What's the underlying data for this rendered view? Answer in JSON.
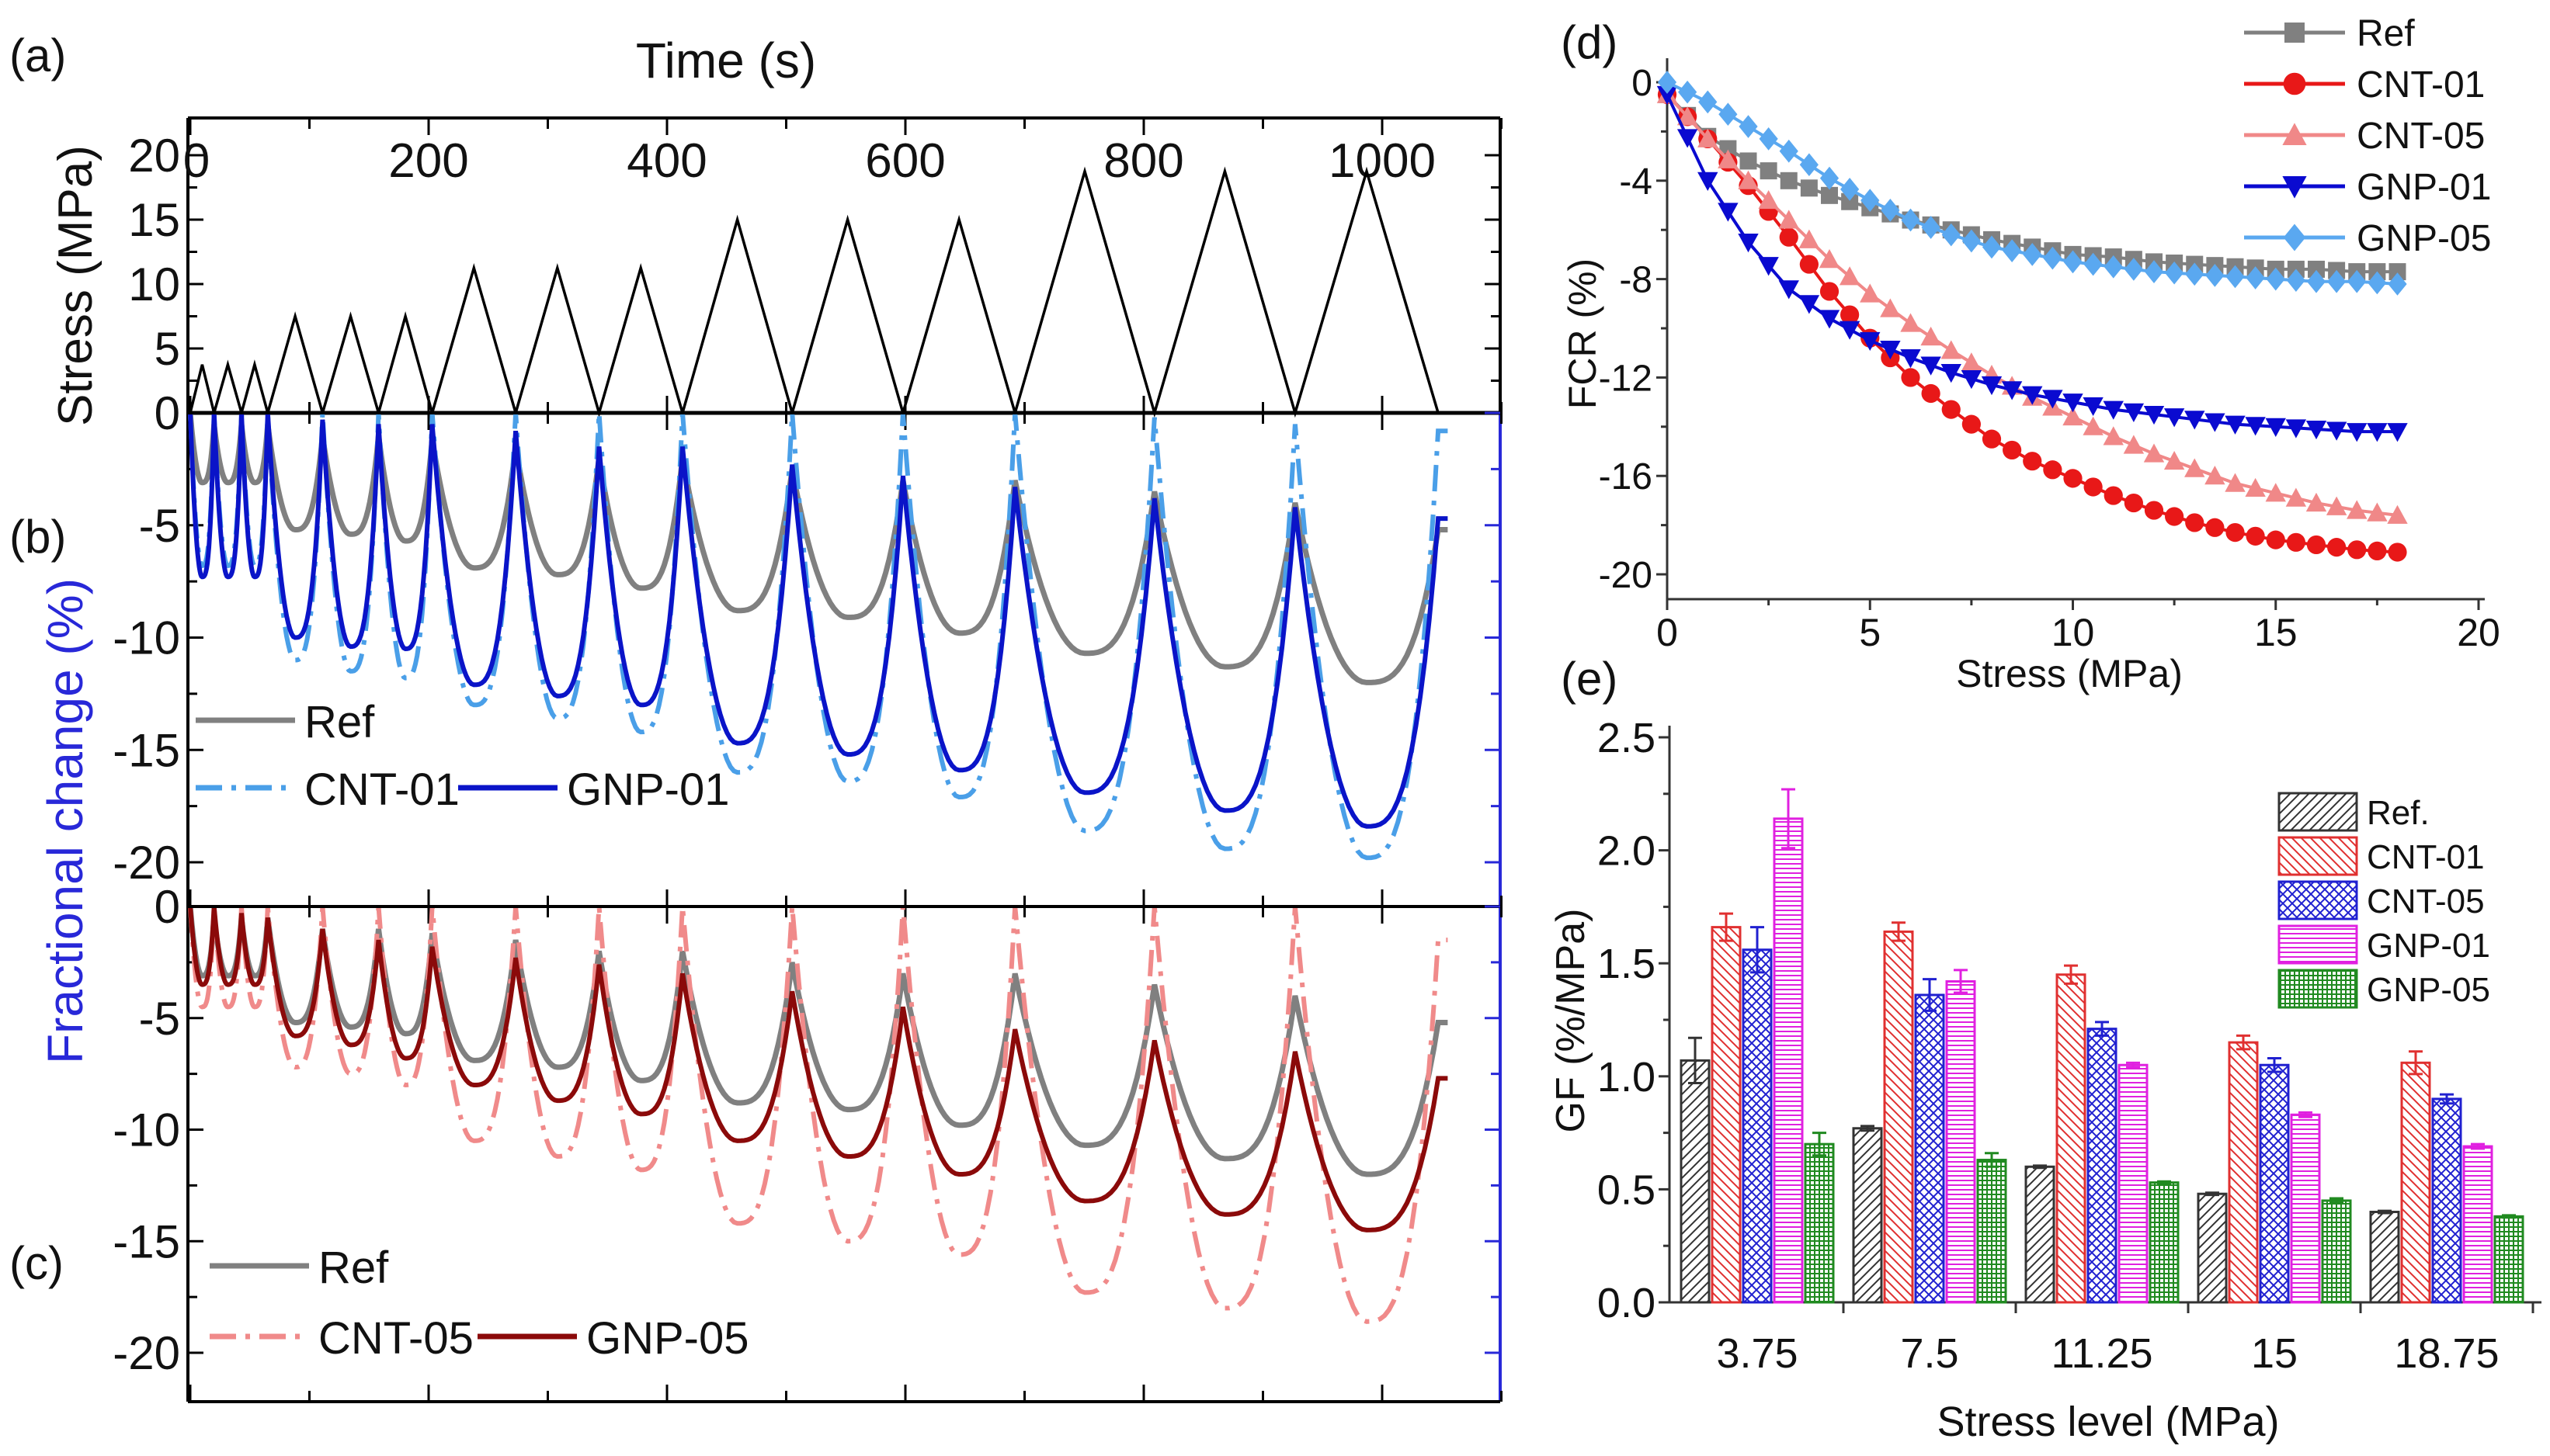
{
  "panel_labels": {
    "a": "(a)",
    "b": "(b)",
    "c": "(c)",
    "d": "(d)",
    "e": "(e)"
  },
  "colors": {
    "stress": "#000000",
    "Ref": "#808080",
    "CNT-01": "#4a9fe8",
    "GNP-01": "#0a14c8",
    "CNT-05": "#f08a8a",
    "GNP-05": "#8b0a0a",
    "fractional_axis": "#2828d8",
    "d_Ref": "#808080",
    "d_CNT-01": "#e81818",
    "d_CNT-05": "#f08888",
    "d_GNP-01": "#0a0ad0",
    "d_GNP-05": "#5aa8f0",
    "e_Ref.": "#333333",
    "e_CNT-01": "#e03030",
    "e_CNT-05": "#2020d0",
    "e_GNP-01": "#e020e0",
    "e_GNP-05": "#208a20"
  },
  "chart_data": [
    {
      "id": "a",
      "type": "line",
      "xlabel": "Time (s)",
      "ylabel": "Stress (MPa)",
      "xticks": [
        0,
        200,
        400,
        600,
        800,
        1000
      ],
      "yticks": [
        0,
        5,
        10,
        15,
        20
      ],
      "xlim": [
        0,
        1100
      ],
      "ylim": [
        0,
        23
      ],
      "valley_times": [
        0,
        20,
        43,
        65,
        111,
        158,
        203,
        273,
        343,
        413,
        505,
        598,
        692,
        809,
        927,
        1047
      ],
      "peak_stress": [
        3.75,
        3.75,
        3.75,
        7.5,
        7.5,
        7.5,
        11.25,
        11.25,
        11.25,
        15,
        15,
        15,
        18.75,
        18.75,
        18.75
      ],
      "end_time": 1055
    },
    {
      "id": "b",
      "type": "line",
      "ylabel": "Fractional change (%)",
      "yticks": [
        -5,
        -10,
        -15,
        -20
      ],
      "ylim": [
        -22,
        0
      ],
      "legend": [
        "Ref",
        "CNT-01",
        "GNP-01"
      ],
      "series": [
        {
          "name": "Ref",
          "style": "solid",
          "cycle_min": [
            -3.1,
            -3.1,
            -3.1,
            -5.2,
            -5.4,
            -5.7,
            -6.9,
            -7.2,
            -7.8,
            -8.8,
            -9.1,
            -9.8,
            -10.7,
            -11.3,
            -12.0
          ],
          "cycle_end": [
            -0.5,
            -0.5,
            -0.5,
            -1.0,
            -1.0,
            -1.2,
            -1.5,
            -2.0,
            -2.0,
            -2.5,
            -3.0,
            -3.0,
            -3.5,
            -4.0,
            -5.2
          ]
        },
        {
          "name": "CNT-01",
          "style": "dashdot",
          "cycle_min": [
            -6.8,
            -6.8,
            -6.8,
            -11.0,
            -11.5,
            -11.8,
            -13.0,
            -13.6,
            -14.2,
            -16.0,
            -16.4,
            -17.1,
            -18.6,
            -19.4,
            -19.8
          ],
          "cycle_end": [
            0,
            0,
            0,
            0,
            0,
            0,
            0,
            0,
            0,
            0,
            0,
            0,
            -0.2,
            -0.5,
            -0.8
          ]
        },
        {
          "name": "GNP-01",
          "style": "solid",
          "cycle_min": [
            -7.3,
            -7.3,
            -7.3,
            -10.0,
            -10.4,
            -10.5,
            -12.1,
            -12.6,
            -13.0,
            -14.7,
            -15.2,
            -15.9,
            -16.9,
            -17.7,
            -18.4
          ],
          "cycle_end": [
            0,
            0,
            0,
            -0.3,
            -0.5,
            -0.5,
            -0.8,
            -1.5,
            -1.5,
            -2.3,
            -2.8,
            -3.3,
            -3.8,
            -4.2,
            -4.7
          ]
        }
      ]
    },
    {
      "id": "c",
      "type": "line",
      "yticks": [
        0,
        -5,
        -10,
        -15,
        -20
      ],
      "ylim": [
        -22.2,
        0
      ],
      "legend": [
        "Ref",
        "CNT-05",
        "GNP-05"
      ],
      "series": [
        {
          "name": "Ref",
          "style": "solid",
          "cycle_min": [
            -3.1,
            -3.1,
            -3.1,
            -5.2,
            -5.4,
            -5.7,
            -6.9,
            -7.2,
            -7.8,
            -8.8,
            -9.1,
            -9.8,
            -10.7,
            -11.3,
            -12.0
          ],
          "cycle_end": [
            -0.5,
            -0.5,
            -0.5,
            -1.0,
            -1.0,
            -1.2,
            -1.5,
            -2.0,
            -2.0,
            -2.5,
            -3.0,
            -3.0,
            -3.5,
            -4.0,
            -5.2
          ]
        },
        {
          "name": "CNT-05",
          "style": "dashdot",
          "cycle_min": [
            -4.5,
            -4.5,
            -4.5,
            -7.2,
            -7.5,
            -8.0,
            -10.5,
            -11.2,
            -11.8,
            -14.2,
            -15.0,
            -15.6,
            -17.3,
            -18.0,
            -18.6
          ],
          "cycle_end": [
            0,
            0,
            0,
            0,
            0,
            0,
            0,
            0,
            0,
            0,
            0,
            0,
            0,
            0,
            -1.5
          ]
        },
        {
          "name": "GNP-05",
          "style": "solid",
          "cycle_min": [
            -3.5,
            -3.5,
            -3.5,
            -5.8,
            -6.2,
            -6.8,
            -8.0,
            -8.7,
            -9.3,
            -10.5,
            -11.2,
            -12.0,
            -13.2,
            -13.8,
            -14.5
          ],
          "cycle_end": [
            0,
            -0.3,
            -0.5,
            -1.0,
            -1.5,
            -1.8,
            -2.3,
            -2.6,
            -3.0,
            -3.8,
            -4.5,
            -5.5,
            -6.0,
            -6.5,
            -7.7
          ]
        }
      ]
    },
    {
      "id": "d",
      "type": "line",
      "xlabel": "Stress (MPa)",
      "ylabel": "FCR (%)",
      "xticks": [
        0,
        5,
        10,
        15,
        20
      ],
      "yticks": [
        0,
        -4,
        -8,
        -12,
        -16,
        -20
      ],
      "xlim": [
        0,
        20
      ],
      "ylim": [
        -21,
        1.5
      ],
      "legend_position": "top-right",
      "x": [
        0,
        1,
        2,
        3,
        4,
        5,
        6,
        7,
        8,
        9,
        10,
        11,
        12,
        13,
        14,
        15,
        16,
        17,
        18
      ],
      "series": [
        {
          "name": "Ref",
          "marker": "square",
          "values": [
            -0.5,
            -2.2,
            -3.2,
            -4.0,
            -4.6,
            -5.1,
            -5.6,
            -6.0,
            -6.4,
            -6.7,
            -7.0,
            -7.1,
            -7.3,
            -7.4,
            -7.5,
            -7.6,
            -7.6,
            -7.7,
            -7.7
          ]
        },
        {
          "name": "CNT-01",
          "marker": "circle",
          "values": [
            -0.5,
            -2.3,
            -4.2,
            -6.3,
            -8.5,
            -10.4,
            -12.0,
            -13.3,
            -14.5,
            -15.4,
            -16.1,
            -16.8,
            -17.4,
            -17.9,
            -18.3,
            -18.6,
            -18.8,
            -19.0,
            -19.1
          ]
        },
        {
          "name": "CNT-05",
          "marker": "triangle-up",
          "values": [
            -0.5,
            -2.3,
            -4.0,
            -5.6,
            -7.2,
            -8.6,
            -9.8,
            -10.9,
            -11.9,
            -12.8,
            -13.6,
            -14.4,
            -15.1,
            -15.7,
            -16.3,
            -16.7,
            -17.1,
            -17.4,
            -17.6
          ]
        },
        {
          "name": "GNP-01",
          "marker": "triangle-down",
          "values": [
            -0.5,
            -4.0,
            -6.5,
            -8.4,
            -9.6,
            -10.5,
            -11.2,
            -11.8,
            -12.3,
            -12.7,
            -13.0,
            -13.3,
            -13.5,
            -13.7,
            -13.9,
            -14.0,
            -14.1,
            -14.2,
            -14.2
          ]
        },
        {
          "name": "GNP-05",
          "marker": "diamond",
          "values": [
            0,
            -0.8,
            -1.8,
            -2.8,
            -3.9,
            -4.8,
            -5.6,
            -6.2,
            -6.7,
            -7.0,
            -7.3,
            -7.5,
            -7.7,
            -7.8,
            -7.9,
            -8.0,
            -8.1,
            -8.1,
            -8.2
          ]
        }
      ]
    },
    {
      "id": "e",
      "type": "bar",
      "xlabel": "Stress level (MPa)",
      "ylabel": "GF (%/MPa)",
      "categories": [
        "3.75",
        "7.5",
        "11.25",
        "15",
        "18.75"
      ],
      "ylim": [
        0,
        2.5
      ],
      "yticks": [
        "0.0",
        "0.5",
        "1.0",
        "1.5",
        "2.0",
        "2.5"
      ],
      "legend_position": "top-right",
      "series": [
        {
          "name": "Ref.",
          "pattern": "diag-right",
          "values": [
            1.07,
            0.77,
            0.6,
            0.48,
            0.4
          ],
          "errors": [
            0.1,
            0.01,
            0.005,
            0.005,
            0.005
          ]
        },
        {
          "name": "CNT-01",
          "pattern": "diag-left",
          "values": [
            1.66,
            1.64,
            1.45,
            1.15,
            1.06
          ],
          "errors": [
            0.06,
            0.04,
            0.04,
            0.03,
            0.05
          ]
        },
        {
          "name": "CNT-05",
          "pattern": "crosshatch",
          "values": [
            1.56,
            1.36,
            1.21,
            1.05,
            0.9
          ],
          "errors": [
            0.1,
            0.07,
            0.03,
            0.03,
            0.02
          ]
        },
        {
          "name": "GNP-01",
          "pattern": "horizontal",
          "values": [
            2.14,
            1.42,
            1.05,
            0.83,
            0.69
          ],
          "errors": [
            0.13,
            0.05,
            0.01,
            0.01,
            0.01
          ]
        },
        {
          "name": "GNP-05",
          "pattern": "grid",
          "values": [
            0.7,
            0.63,
            0.53,
            0.45,
            0.38
          ],
          "errors": [
            0.05,
            0.03,
            0.005,
            0.01,
            0.005
          ]
        }
      ]
    }
  ]
}
